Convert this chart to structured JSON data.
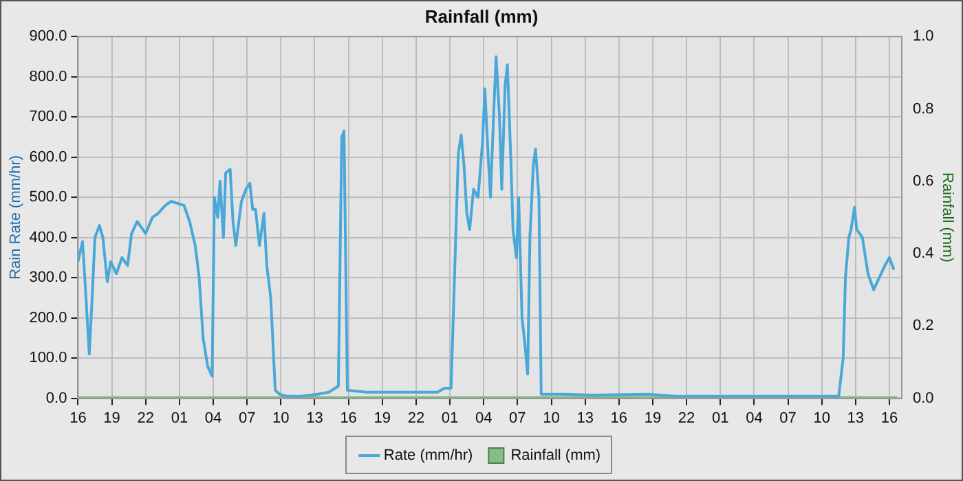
{
  "chart_data": {
    "type": "line",
    "title": "Rainfall (mm)",
    "ylabel": "Rain Rate (mm/hr)",
    "y2label": "Rainfall (mm)",
    "legend": "bottom",
    "grid": true,
    "marker": "none",
    "line_style": "solid",
    "xlim": [
      "--01-01T16:00",
      "--01-04T17:06"
    ],
    "xticks": [
      {
        "value": "--01-01T16:00",
        "label": "16"
      },
      {
        "value": "--01-01T19:00",
        "label": "19"
      },
      {
        "value": "--01-01T22:00",
        "label": "22"
      },
      {
        "value": "--01-02T01:00",
        "label": "01"
      },
      {
        "value": "--01-02T04:00",
        "label": "04"
      },
      {
        "value": "--01-02T07:00",
        "label": "07"
      },
      {
        "value": "--01-02T10:00",
        "label": "10"
      },
      {
        "value": "--01-02T13:00",
        "label": "13"
      },
      {
        "value": "--01-02T16:00",
        "label": "16"
      },
      {
        "value": "--01-02T19:00",
        "label": "19"
      },
      {
        "value": "--01-02T22:00",
        "label": "22"
      },
      {
        "value": "--01-03T01:00",
        "label": "01"
      },
      {
        "value": "--01-03T04:00",
        "label": "04"
      },
      {
        "value": "--01-03T07:00",
        "label": "07"
      },
      {
        "value": "--01-03T10:00",
        "label": "10"
      },
      {
        "value": "--01-03T13:00",
        "label": "13"
      },
      {
        "value": "--01-03T16:00",
        "label": "16"
      },
      {
        "value": "--01-03T19:00",
        "label": "19"
      },
      {
        "value": "--01-03T22:00",
        "label": "22"
      },
      {
        "value": "--01-04T01:00",
        "label": "01"
      },
      {
        "value": "--01-04T04:00",
        "label": "04"
      },
      {
        "value": "--01-04T07:00",
        "label": "07"
      },
      {
        "value": "--01-04T10:00",
        "label": "10"
      },
      {
        "value": "--01-04T13:00",
        "label": "13"
      },
      {
        "value": "--01-04T16:00",
        "label": "16"
      }
    ],
    "ylim": [
      0,
      900
    ],
    "yticks": [
      {
        "value": 0,
        "label": "0.0"
      },
      {
        "value": 100,
        "label": "100.0"
      },
      {
        "value": 200,
        "label": "200.0"
      },
      {
        "value": 300,
        "label": "300.0"
      },
      {
        "value": 400,
        "label": "400.0"
      },
      {
        "value": 500,
        "label": "500.0"
      },
      {
        "value": 600,
        "label": "600.0"
      },
      {
        "value": 700,
        "label": "700.0"
      },
      {
        "value": 800,
        "label": "800.0"
      },
      {
        "value": 900,
        "label": "900.0"
      }
    ],
    "y2lim": [
      0,
      1
    ],
    "y2ticks": [
      {
        "value": 0,
        "label": "0.0"
      },
      {
        "value": 0.2,
        "label": "0.2"
      },
      {
        "value": 0.4,
        "label": "0.4"
      },
      {
        "value": 0.6,
        "label": "0.6"
      },
      {
        "value": 0.8,
        "label": "0.8"
      },
      {
        "value": 1,
        "label": "1.0"
      }
    ],
    "series": [
      {
        "name": "Rate (mm/hr)",
        "axis": "y",
        "color": "#4aa8d8",
        "x": [
          "--01-01T16:00",
          "--01-01T16:24",
          "--01-01T16:36",
          "--01-01T17:00",
          "--01-01T17:15",
          "--01-01T17:30",
          "--01-01T17:54",
          "--01-01T18:12",
          "--01-01T18:36",
          "--01-01T18:54",
          "--01-01T19:24",
          "--01-01T19:54",
          "--01-01T20:24",
          "--01-01T20:45",
          "--01-01T21:15",
          "--01-01T22:00",
          "--01-01T22:36",
          "--01-01T23:06",
          "--01-01T23:45",
          "--01-02T00:15",
          "--01-02T01:24",
          "--01-02T01:54",
          "--01-02T02:24",
          "--01-02T02:45",
          "--01-02T03:06",
          "--01-02T03:30",
          "--01-02T03:54",
          "--01-02T04:06",
          "--01-02T04:24",
          "--01-02T04:36",
          "--01-02T04:54",
          "--01-02T05:06",
          "--01-02T05:30",
          "--01-02T05:45",
          "--01-02T06:00",
          "--01-02T06:30",
          "--01-02T06:54",
          "--01-02T07:15",
          "--01-02T07:30",
          "--01-02T07:45",
          "--01-02T08:06",
          "--01-02T08:30",
          "--01-02T08:45",
          "--01-02T09:06",
          "--01-02T09:30",
          "--01-02T09:54",
          "--01-02T10:30",
          "--01-02T11:45",
          "--01-02T13:15",
          "--01-02T14:15",
          "--01-02T15:06",
          "--01-02T15:24",
          "--01-02T15:36",
          "--01-02T15:54",
          "--01-02T17:36",
          "--01-02T21:24",
          "--01-02T23:54",
          "--01-03T00:30",
          "--01-03T01:06",
          "--01-03T01:45",
          "--01-03T02:00",
          "--01-03T02:15",
          "--01-03T02:30",
          "--01-03T02:45",
          "--01-03T03:06",
          "--01-03T03:30",
          "--01-03T03:54",
          "--01-03T04:06",
          "--01-03T04:24",
          "--01-03T04:36",
          "--01-03T04:54",
          "--01-03T05:06",
          "--01-03T05:24",
          "--01-03T05:36",
          "--01-03T05:54",
          "--01-03T06:06",
          "--01-03T06:24",
          "--01-03T06:36",
          "--01-03T06:54",
          "--01-03T07:06",
          "--01-03T07:24",
          "--01-03T07:36",
          "--01-03T07:54",
          "--01-03T08:06",
          "--01-03T08:24",
          "--01-03T08:36",
          "--01-03T08:54",
          "--01-03T09:06",
          "--01-03T11:06",
          "--01-03T13:36",
          "--01-03T18:36",
          "--01-03T21:06",
          "--01-04T04:36",
          "--01-04T11:30",
          "--01-04T11:54",
          "--01-04T12:06",
          "--01-04T12:24",
          "--01-04T12:36",
          "--01-04T12:54",
          "--01-04T13:06",
          "--01-04T13:36",
          "--01-04T14:06",
          "--01-04T14:36",
          "--01-04T15:06",
          "--01-04T15:36",
          "--01-04T16:00",
          "--01-04T16:24"
        ],
        "values": [
          340,
          390,
          300,
          110,
          250,
          400,
          430,
          400,
          290,
          340,
          310,
          350,
          330,
          410,
          440,
          410,
          450,
          460,
          480,
          490,
          480,
          440,
          380,
          300,
          150,
          80,
          55,
          500,
          450,
          540,
          400,
          560,
          570,
          440,
          380,
          490,
          520,
          535,
          470,
          470,
          380,
          460,
          330,
          250,
          20,
          10,
          5,
          5,
          10,
          15,
          30,
          650,
          665,
          20,
          15,
          15,
          15,
          25,
          25,
          610,
          655,
          580,
          460,
          420,
          520,
          500,
          640,
          770,
          600,
          500,
          720,
          850,
          700,
          520,
          780,
          830,
          600,
          420,
          350,
          500,
          200,
          150,
          60,
          400,
          580,
          620,
          500,
          10,
          10,
          8,
          10,
          5,
          5,
          5,
          100,
          300,
          400,
          420,
          475,
          420,
          400,
          310,
          270,
          300,
          330,
          350,
          320
        ]
      },
      {
        "name": "Rainfall (mm)",
        "type": "bar",
        "axis": "y2",
        "color": "#80c080",
        "x": [
          "--01-01T16:00",
          "--01-04T16:42"
        ],
        "values": [
          0,
          0
        ]
      }
    ]
  }
}
